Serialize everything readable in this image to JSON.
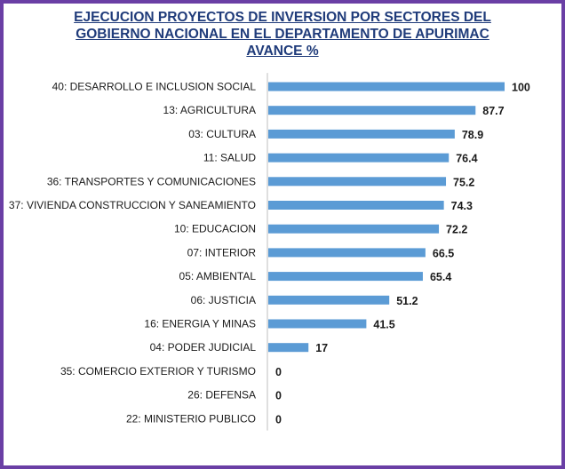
{
  "chart_data": {
    "type": "bar",
    "orientation": "horizontal",
    "title_lines": [
      "EJECUCION PROYECTOS DE INVERSION POR SECTORES DEL",
      "GOBIERNO NACIONAL  EN EL DEPARTAMENTO DE APURIMAC",
      "AVANCE %"
    ],
    "categories": [
      "40: DESARROLLO E INCLUSION SOCIAL",
      "13: AGRICULTURA",
      "03: CULTURA",
      "11: SALUD",
      "36: TRANSPORTES Y COMUNICACIONES",
      "37: VIVIENDA CONSTRUCCION Y SANEAMIENTO",
      "10: EDUCACION",
      "07: INTERIOR",
      "05: AMBIENTAL",
      "06: JUSTICIA",
      "16: ENERGIA Y MINAS",
      "04: PODER JUDICIAL",
      "35: COMERCIO EXTERIOR Y TURISMO",
      "26: DEFENSA",
      "22: MINISTERIO PUBLICO"
    ],
    "values": [
      100,
      87.7,
      78.9,
      76.4,
      75.2,
      74.3,
      72.2,
      66.5,
      65.4,
      51.2,
      41.5,
      17,
      0,
      0,
      0
    ],
    "value_labels": [
      "100",
      "87.7",
      "78.9",
      "76.4",
      "75.2",
      "74.3",
      "72.2",
      "66.5",
      "65.4",
      "51.2",
      "41.5",
      "17",
      "0",
      "0",
      "0"
    ],
    "xlim": [
      0,
      100
    ],
    "grid": false,
    "legend": "none",
    "colors": {
      "bar": "#5b9bd5",
      "title": "#1f3b7a",
      "frame": "#6a3fa5",
      "axis": "#bfbfbf"
    }
  }
}
